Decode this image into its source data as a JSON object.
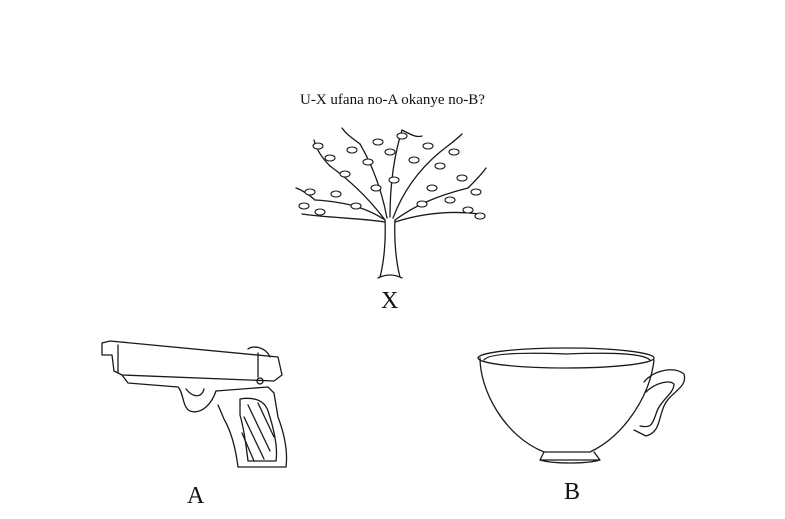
{
  "question": "U-X ufana no-A okanye no-B?",
  "items": [
    {
      "label": "X",
      "icon": "tree-icon"
    },
    {
      "label": "A",
      "icon": "pistol-icon"
    },
    {
      "label": "B",
      "icon": "teacup-icon"
    }
  ]
}
